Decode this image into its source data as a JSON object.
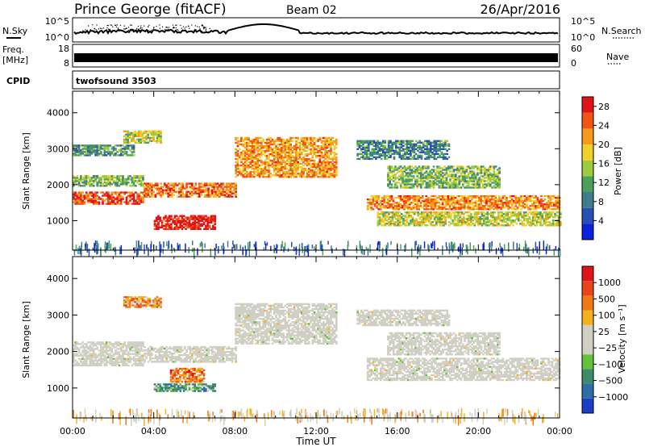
{
  "header": {
    "station": "Prince George (fitACF)",
    "beam": "Beam 02",
    "date": "26/Apr/2016"
  },
  "strip_panels": {
    "nsky_label": "N.Sky",
    "nsearch_label": "N.Search",
    "freq_label_line1": "Freq.",
    "freq_label_line2": "[MHz]",
    "nave_label": "Nave",
    "cpid_label": "CPID",
    "cpid_value": "twofsound 3503",
    "noise_ticks_left": [
      "10^5",
      "10^0"
    ],
    "noise_ticks_right": [
      "10^5",
      "10^0"
    ],
    "freq_ticks_left": [
      "18",
      "8"
    ],
    "nave_ticks_right": [
      "60",
      "0"
    ]
  },
  "chart_data": [
    {
      "type": "heatmap",
      "title": "",
      "xlabel": "Time UT",
      "ylabel": "Slant Range [km]",
      "x_ticks": [
        "00:00",
        "04:00",
        "08:00",
        "12:00",
        "16:00",
        "20:00",
        "00:00"
      ],
      "y_ticks": [
        "1000",
        "2000",
        "3000",
        "4000"
      ],
      "xlim_hours": [
        0,
        24
      ],
      "ylim_km": [
        180,
        4600
      ],
      "colorbar": {
        "label": "Power [dB]",
        "ticks": [
          "4",
          "8",
          "12",
          "16",
          "20",
          "24",
          "28"
        ],
        "range": [
          0,
          30
        ],
        "colors": [
          "#0a22d8",
          "#2a4fb3",
          "#3f7d8b",
          "#4aa05c",
          "#9ccc3d",
          "#f2d02b",
          "#f59a1a",
          "#f05516",
          "#e0131a"
        ]
      },
      "bands": [
        {
          "t0": 0.0,
          "t1": 3.5,
          "r0": 1450,
          "r1": 1800,
          "level": 0.85
        },
        {
          "t0": 3.5,
          "t1": 8.0,
          "r0": 1650,
          "r1": 2050,
          "level": 0.78
        },
        {
          "t0": 8.0,
          "t1": 13.0,
          "r0": 2200,
          "r1": 3300,
          "level": 0.72
        },
        {
          "t0": 0.0,
          "t1": 3.5,
          "r0": 1950,
          "r1": 2250,
          "level": 0.45
        },
        {
          "t0": 0.0,
          "t1": 3.0,
          "r0": 2800,
          "r1": 3100,
          "level": 0.35
        },
        {
          "t0": 2.5,
          "t1": 4.3,
          "r0": 3150,
          "r1": 3500,
          "level": 0.55
        },
        {
          "t0": 4.0,
          "t1": 7.0,
          "r0": 750,
          "r1": 1150,
          "level": 0.95
        },
        {
          "t0": 14.5,
          "t1": 24.0,
          "r0": 1300,
          "r1": 1700,
          "level": 0.75
        },
        {
          "t0": 15.0,
          "t1": 24.0,
          "r0": 850,
          "r1": 1250,
          "level": 0.55
        },
        {
          "t0": 15.5,
          "t1": 21.0,
          "r0": 1900,
          "r1": 2500,
          "level": 0.45
        },
        {
          "t0": 14.0,
          "t1": 18.5,
          "r0": 2700,
          "r1": 3200,
          "level": 0.3
        }
      ]
    },
    {
      "type": "heatmap",
      "title": "",
      "xlabel": "Time UT",
      "ylabel": "Slant Range [km]",
      "x_ticks": [
        "00:00",
        "04:00",
        "08:00",
        "12:00",
        "16:00",
        "20:00",
        "00:00"
      ],
      "y_ticks": [
        "1000",
        "2000",
        "3000",
        "4000"
      ],
      "xlim_hours": [
        0,
        24
      ],
      "ylim_km": [
        180,
        4600
      ],
      "colorbar": {
        "label": "Velocity [m s⁻¹]",
        "ticks": [
          "1000",
          "500",
          "100",
          "25",
          "−25",
          "−100",
          "−500",
          "−1000"
        ],
        "colors": [
          "#1a3ec4",
          "#2e6ea6",
          "#3c8c6a",
          "#63c23a",
          "#cfcfc4",
          "#cfcfc4",
          "#f5b020",
          "#f07817",
          "#e8451a",
          "#e0131a"
        ]
      },
      "bands": [
        {
          "t0": 0.0,
          "t1": 3.5,
          "r0": 1600,
          "r1": 2250,
          "level": 0.5
        },
        {
          "t0": 3.5,
          "t1": 8.0,
          "r0": 1700,
          "r1": 2150,
          "level": 0.5
        },
        {
          "t0": 8.0,
          "t1": 13.0,
          "r0": 2200,
          "r1": 3300,
          "level": 0.5
        },
        {
          "t0": 2.5,
          "t1": 4.3,
          "r0": 3200,
          "r1": 3500,
          "level": 0.7
        },
        {
          "t0": 4.0,
          "t1": 7.0,
          "r0": 900,
          "r1": 1100,
          "level": 0.28
        },
        {
          "t0": 4.8,
          "t1": 6.5,
          "r0": 1150,
          "r1": 1550,
          "level": 0.75
        },
        {
          "t0": 14.5,
          "t1": 24.0,
          "r0": 1200,
          "r1": 1800,
          "level": 0.5
        },
        {
          "t0": 15.5,
          "t1": 21.0,
          "r0": 1900,
          "r1": 2500,
          "level": 0.5
        },
        {
          "t0": 14.0,
          "t1": 18.5,
          "r0": 2700,
          "r1": 3150,
          "level": 0.5
        }
      ]
    }
  ]
}
